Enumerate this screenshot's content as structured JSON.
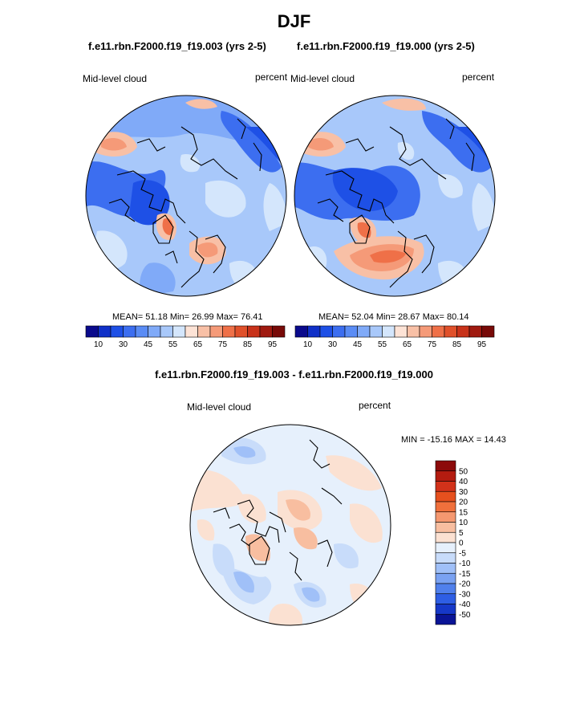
{
  "title": "DJF",
  "panels": [
    {
      "case": "f.e11.rbn.F2000.f19_f19.003 (yrs 2-5)",
      "field": "Mid-level cloud",
      "units": "percent",
      "stats": {
        "mean_label": "MEAN=",
        "mean": "51.18",
        "min_label": "Min=",
        "min": "26.99",
        "max_label": "Max=",
        "max": "76.41"
      }
    },
    {
      "case": "f.e11.rbn.F2000.f19_f19.000 (yrs 2-5)",
      "field": "Mid-level cloud",
      "units": "percent",
      "stats": {
        "mean_label": "MEAN=",
        "mean": "52.04",
        "min_label": "Min=",
        "min": "28.67",
        "max_label": "Max=",
        "max": "80.14"
      }
    }
  ],
  "diff": {
    "title": "f.e11.rbn.F2000.f19_f19.003 - f.e11.rbn.F2000.f19_f19.000",
    "field": "Mid-level cloud",
    "units": "percent",
    "minmax": "MIN = -15.16 MAX =  14.43"
  },
  "colorbar_abs": {
    "colors": [
      "#0a0a8c",
      "#1030c8",
      "#1e50e6",
      "#3c6ef0",
      "#5a8cf5",
      "#80aaf8",
      "#a8c8fa",
      "#d4e6fc",
      "#fde3d6",
      "#f8c0a6",
      "#f59a78",
      "#ef7048",
      "#e0502a",
      "#c8321a",
      "#a01a10",
      "#780a08"
    ],
    "ticks": [
      "10",
      "30",
      "45",
      "55",
      "65",
      "75",
      "85",
      "95"
    ]
  },
  "colorbar_diff": {
    "colors": [
      "#8c0a0a",
      "#b41c10",
      "#d2321a",
      "#e6501e",
      "#f0703c",
      "#f59870",
      "#f8bea0",
      "#fbe1d2",
      "#e6f0fc",
      "#c8dcfa",
      "#a0c0f8",
      "#7aa2f2",
      "#5080ec",
      "#2e5ee4",
      "#1638c8",
      "#0a1496"
    ],
    "ticks": [
      "50",
      "40",
      "30",
      "20",
      "15",
      "10",
      "5",
      "0",
      "-5",
      "-10",
      "-15",
      "-20",
      "-30",
      "-40",
      "-50"
    ]
  }
}
